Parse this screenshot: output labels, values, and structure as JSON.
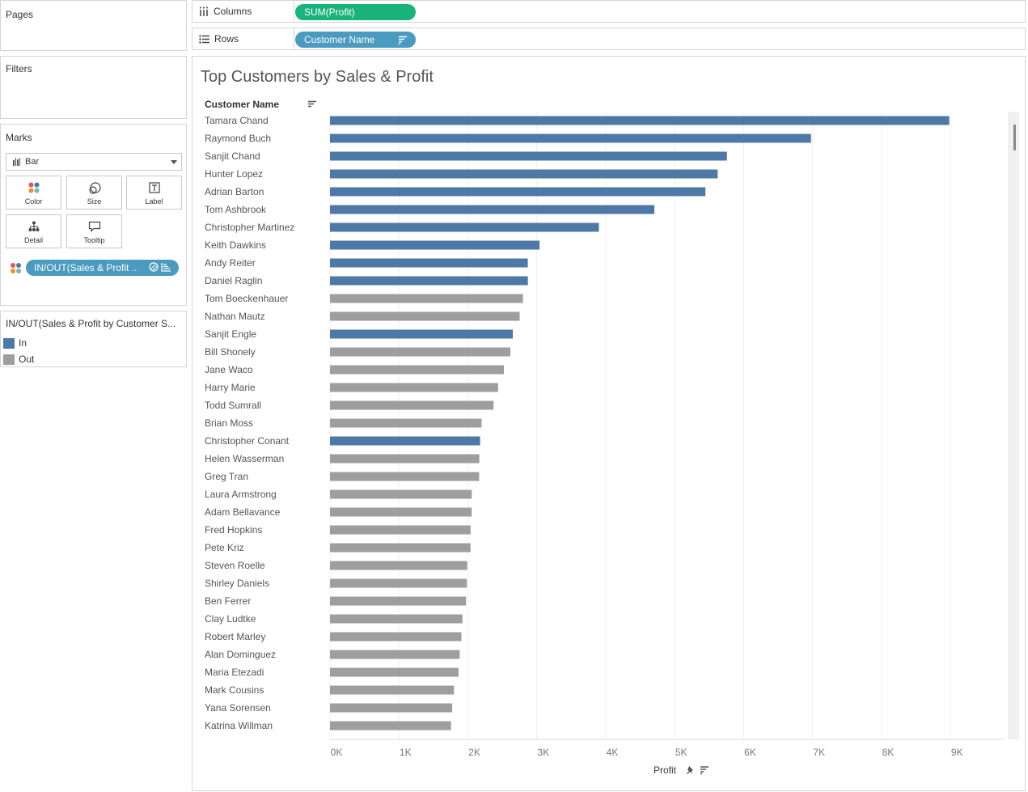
{
  "pages": {
    "title": "Pages"
  },
  "filters": {
    "title": "Filters"
  },
  "marks": {
    "title": "Marks",
    "mark_type": "Bar",
    "cards": [
      {
        "label": "Color",
        "icon": "color-dots-icon"
      },
      {
        "label": "Size",
        "icon": "size-icon"
      },
      {
        "label": "Label",
        "icon": "label-text-icon"
      },
      {
        "label": "Detail",
        "icon": "detail-tree-icon"
      },
      {
        "label": "Tooltip",
        "icon": "tooltip-speech-icon"
      }
    ],
    "color_pill": "IN/OUT(Sales & Profit .."
  },
  "legend": {
    "title": "IN/OUT(Sales & Profit by Customer S...",
    "items": [
      {
        "label": "In",
        "color": "#4e79a7"
      },
      {
        "label": "Out",
        "color": "#9e9e9e"
      }
    ]
  },
  "shelves": {
    "columns_label": "Columns",
    "columns_pill": "SUM(Profit)",
    "rows_label": "Rows",
    "rows_pill": "Customer Name"
  },
  "view": {
    "title": "Top Customers by Sales & Profit",
    "row_header": "Customer Name",
    "axis_title": "Profit"
  },
  "chart_data": {
    "type": "bar",
    "orientation": "horizontal",
    "title": "Top Customers by Sales & Profit",
    "xlabel": "Profit",
    "ylabel": "Customer Name",
    "xlim": [
      0,
      9800
    ],
    "x_ticks": [
      "0K",
      "1K",
      "2K",
      "3K",
      "4K",
      "5K",
      "6K",
      "7K",
      "8K",
      "9K"
    ],
    "grid": true,
    "color_by": "IN/OUT(Sales & Profit by Customer Set)",
    "colors": {
      "In": "#4e79a7",
      "Out": "#9e9e9e"
    },
    "categories": [
      "Tamara Chand",
      "Raymond Buch",
      "Sanjit Chand",
      "Hunter Lopez",
      "Adrian Barton",
      "Tom Ashbrook",
      "Christopher Martinez",
      "Keith Dawkins",
      "Andy Reiter",
      "Daniel Raglin",
      "Tom Boeckenhauer",
      "Nathan Mautz",
      "Sanjit Engle",
      "Bill Shonely",
      "Jane Waco",
      "Harry Marie",
      "Todd Sumrall",
      "Brian Moss",
      "Christopher Conant",
      "Helen Wasserman",
      "Greg Tran",
      "Laura Armstrong",
      "Adam Bellavance",
      "Fred Hopkins",
      "Pete Kriz",
      "Steven Roelle",
      "Shirley Daniels",
      "Ben Ferrer",
      "Clay Ludtke",
      "Robert Marley",
      "Alan Dominguez",
      "Maria Etezadi",
      "Mark Cousins",
      "Yana Sorensen",
      "Katrina Willman"
    ],
    "values": [
      8981,
      6976,
      5757,
      5622,
      5445,
      4704,
      3900,
      3039,
      2869,
      2870,
      2799,
      2751,
      2651,
      2616,
      2522,
      2438,
      2372,
      2199,
      2177,
      2166,
      2163,
      2056,
      2055,
      2039,
      2038,
      1989,
      1985,
      1973,
      1921,
      1906,
      1881,
      1864,
      1798,
      1772,
      1755
    ],
    "group": [
      "In",
      "In",
      "In",
      "In",
      "In",
      "In",
      "In",
      "In",
      "In",
      "In",
      "Out",
      "Out",
      "In",
      "Out",
      "Out",
      "Out",
      "Out",
      "Out",
      "In",
      "Out",
      "Out",
      "Out",
      "Out",
      "Out",
      "Out",
      "Out",
      "Out",
      "Out",
      "Out",
      "Out",
      "Out",
      "Out",
      "Out",
      "Out",
      "Out"
    ]
  }
}
